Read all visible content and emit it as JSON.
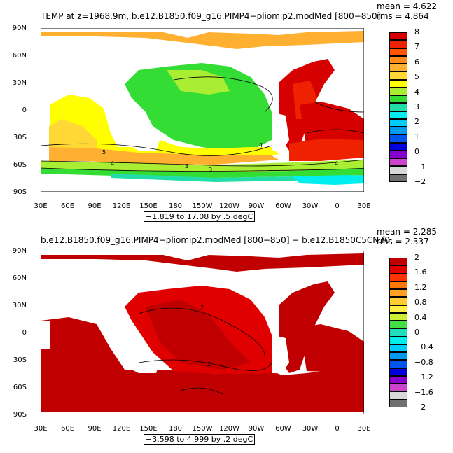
{
  "top": {
    "title": "TEMP at z=1968.9m, b.e12.B1850.f09_g16.PIMP4−pliomip2.modMed [800−850]",
    "mean": "mean = 4.622",
    "rms": "rms = 4.864",
    "range_label": "−1.819 to 17.08 by .5 degC",
    "colorbar_labels": [
      "8",
      "7",
      "6",
      "5",
      "4",
      "3",
      "2",
      "1",
      "0",
      "−1",
      "−2"
    ],
    "colors": [
      "#d60000",
      "#ee2200",
      "#ff5500",
      "#ff8c1a",
      "#ffb030",
      "#ffd835",
      "#ffff00",
      "#aaee33",
      "#33dd33",
      "#22ddaa",
      "#00eeee",
      "#00ccff",
      "#0099ee",
      "#0055ee",
      "#0000dd",
      "#8800cc",
      "#cc44cc",
      "#d8d8d8",
      "#707070"
    ],
    "contour_labels": [
      "4",
      "4",
      "5",
      "4",
      "3",
      "3"
    ]
  },
  "bottom": {
    "title": "b.e12.B1850.f09_g16.PIMP4−pliomip2.modMed [800−850] − b.e12.B1850C5CN.f0",
    "mean": "mean = 2.285",
    "rms": "rms = 2.337",
    "range_label": "−3.598 to 4.999 by .2 degC",
    "colorbar_labels": [
      "2",
      "1.6",
      "1.2",
      "0.8",
      "0.4",
      "0",
      "−0.4",
      "−0.8",
      "−1.2",
      "−1.6",
      "−2"
    ],
    "colors": [
      "#c00000",
      "#e00000",
      "#ff3300",
      "#ff7700",
      "#ffa020",
      "#ffcc33",
      "#ffee44",
      "#ccee33",
      "#44dd44",
      "#22ddbb",
      "#00eeee",
      "#00ccff",
      "#0099ee",
      "#0055ee",
      "#0000dd",
      "#8800cc",
      "#cc44cc",
      "#d8d8d8",
      "#707070"
    ],
    "contour_labels": [
      "2",
      "2"
    ]
  },
  "lat_labels": [
    "90N",
    "60N",
    "30N",
    "0",
    "30S",
    "60S",
    "90S"
  ],
  "lon_labels": [
    "30E",
    "60E",
    "90E",
    "120E",
    "150E",
    "180",
    "150W",
    "120W",
    "90W",
    "60W",
    "30W",
    "0",
    "30E"
  ]
}
